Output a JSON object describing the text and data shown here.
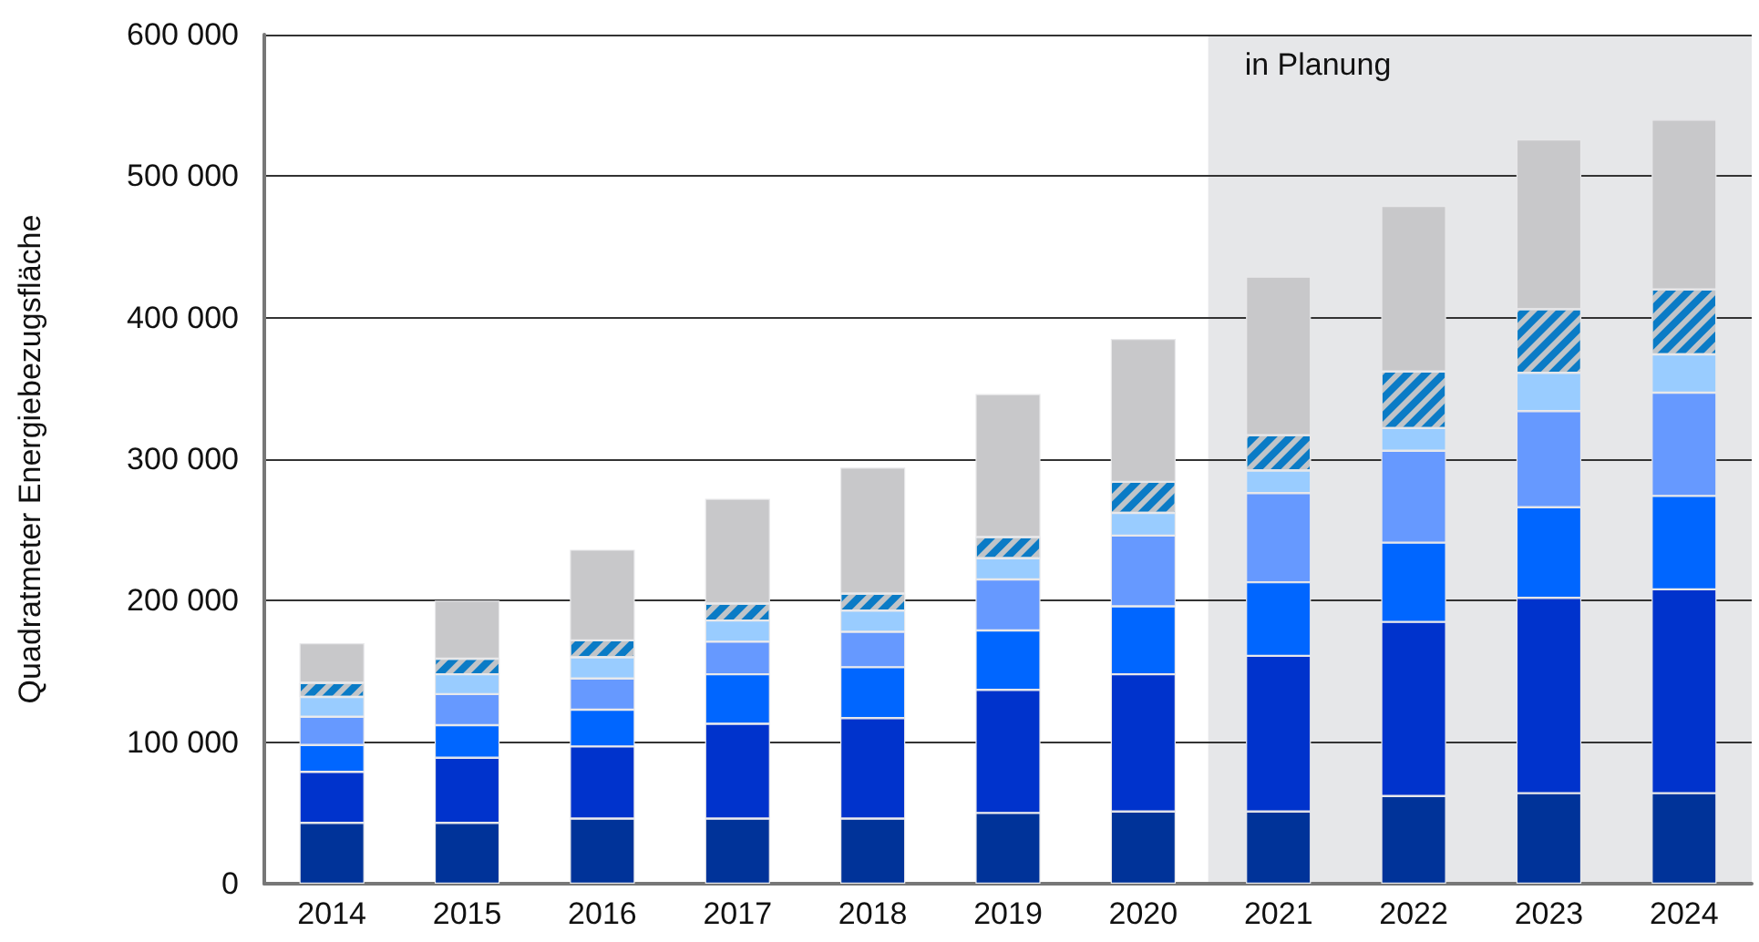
{
  "chart_data": {
    "type": "bar",
    "stacked": true,
    "ylabel": "Quadratmeter Energiebezugsfläche",
    "categories": [
      "2014",
      "2015",
      "2016",
      "2017",
      "2018",
      "2019",
      "2020",
      "2021",
      "2022",
      "2023",
      "2024"
    ],
    "series": [
      {
        "color": "#003399",
        "values": [
          43000,
          43000,
          46000,
          46000,
          46000,
          50000,
          51000,
          51000,
          62000,
          64000,
          64000
        ]
      },
      {
        "color": "#0033cc",
        "values": [
          36000,
          46000,
          51000,
          67000,
          71000,
          87000,
          97000,
          110000,
          123000,
          138000,
          144000
        ]
      },
      {
        "color": "#0066ff",
        "values": [
          19000,
          23000,
          26000,
          35000,
          36000,
          42000,
          48000,
          52000,
          56000,
          64000,
          66000
        ]
      },
      {
        "color": "#6699ff",
        "values": [
          20000,
          22000,
          22000,
          23000,
          25000,
          36000,
          50000,
          63000,
          65000,
          68000,
          73000
        ]
      },
      {
        "color": "#99ccff",
        "values": [
          14000,
          14000,
          15000,
          15000,
          15000,
          15000,
          16000,
          16000,
          16000,
          27000,
          27000
        ]
      },
      {
        "color": "#0a7bc6",
        "values": [
          10000,
          11000,
          12000,
          12000,
          12000,
          15000,
          22000,
          25000,
          40000,
          45000,
          46000
        ]
      },
      {
        "color": "#c8c8ca",
        "values": [
          28000,
          41000,
          64000,
          74000,
          89000,
          101000,
          101000,
          112000,
          117000,
          120000,
          120000
        ]
      }
    ],
    "ylim": [
      0,
      600000
    ],
    "yticks": [
      {
        "value": 0,
        "label": "0"
      },
      {
        "value": 100000,
        "label": "100 000"
      },
      {
        "value": 200000,
        "label": "200 000"
      },
      {
        "value": 300000,
        "label": "300 000"
      },
      {
        "value": 400000,
        "label": "400 000"
      },
      {
        "value": 500000,
        "label": "500 000"
      },
      {
        "value": 600000,
        "label": "600 000"
      }
    ],
    "grid": "y",
    "bands": [
      {
        "axis": "x",
        "from": "2021",
        "to": "2024",
        "label": "in Planung",
        "color": "#e6e7e9"
      }
    ]
  }
}
